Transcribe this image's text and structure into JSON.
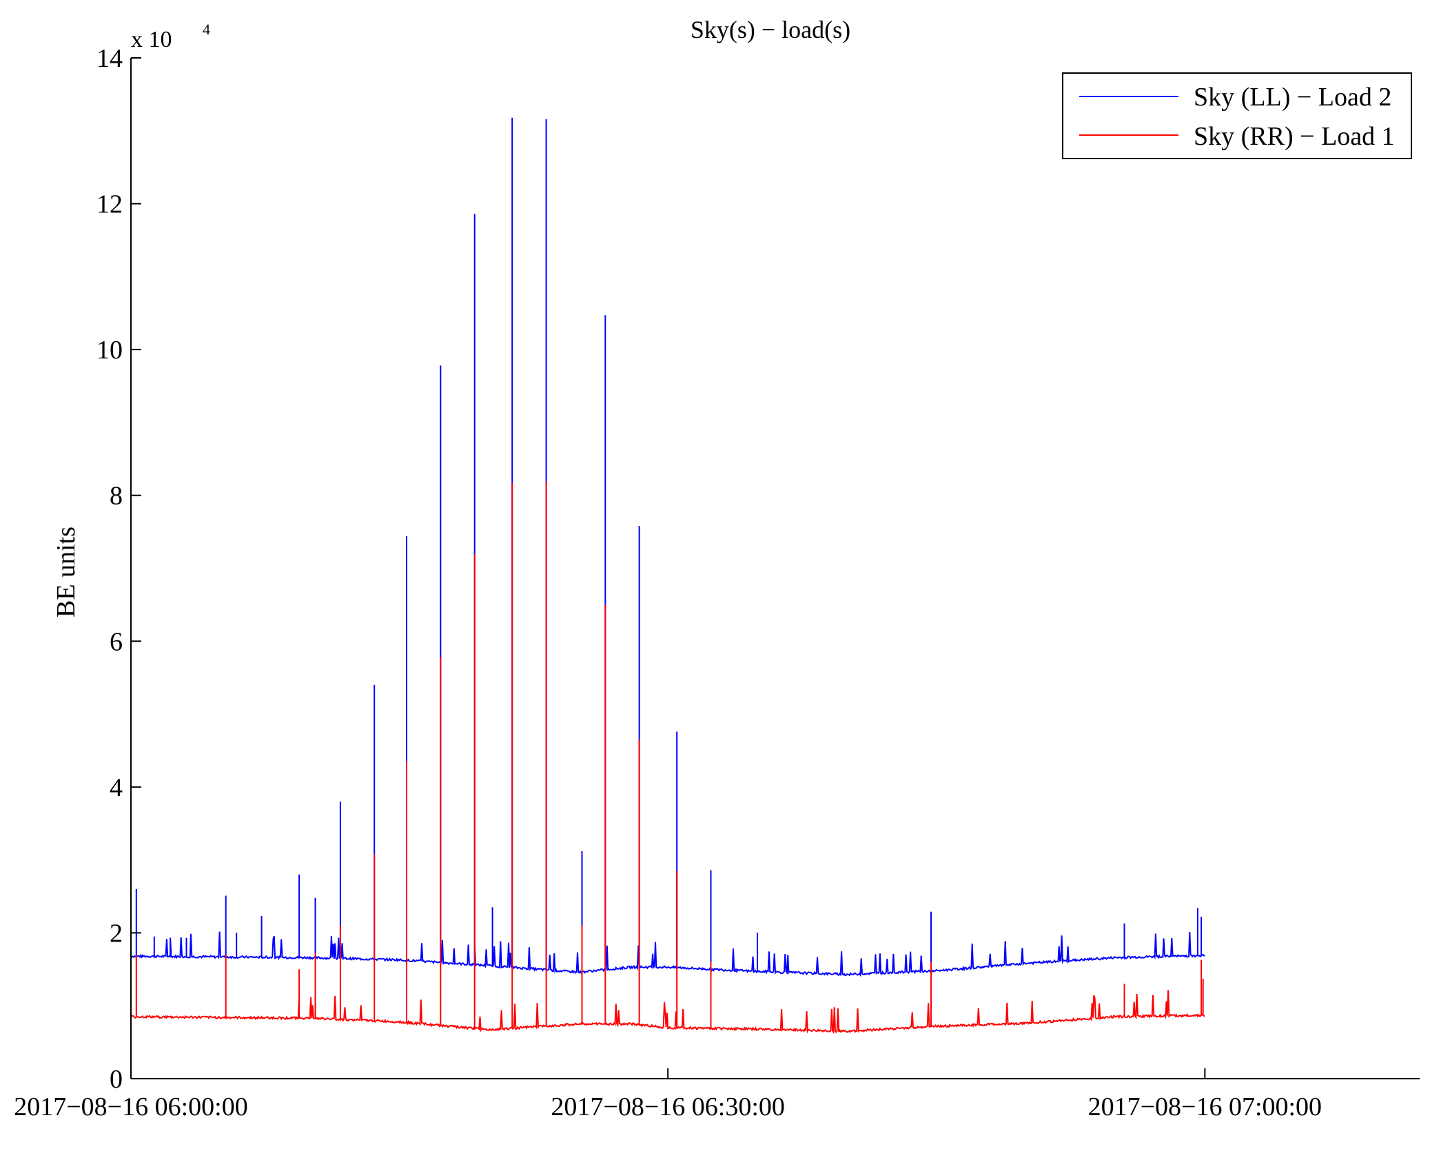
{
  "chart_data": {
    "type": "line",
    "title": "Sky(s) − load(s)",
    "ylabel": "BE units",
    "xlabel": "",
    "y_exponent_label": "x 10",
    "y_exponent_power": "4",
    "xlim": [
      "2017-08-16 06:00:00",
      "2017-08-16 07:12:00"
    ],
    "ylim": [
      0,
      140000
    ],
    "y_ticks": [
      0,
      20000,
      40000,
      60000,
      80000,
      100000,
      120000,
      140000
    ],
    "y_tick_labels": [
      "0",
      "2",
      "4",
      "6",
      "8",
      "10",
      "12",
      "14"
    ],
    "x_ticks": [
      "2017-08-16 06:00:00",
      "2017-08-16 06:30:00",
      "2017-08-16 07:00:00"
    ],
    "x_tick_labels": [
      "2017−08−16 06:00:00",
      "2017−08−16 06:30:00",
      "2017−08−16 07:00:00"
    ],
    "grid": false,
    "legend_position": "top-right",
    "series": [
      {
        "name": "Sky (LL) − Load 2",
        "color": "#0000ff",
        "baseline_x_minutes": [
          0,
          5,
          10,
          15,
          20,
          25,
          28,
          30,
          35,
          40,
          45,
          50,
          55,
          60
        ],
        "baseline_values": [
          16800,
          16700,
          16600,
          16300,
          15500,
          14600,
          15300,
          15300,
          14700,
          14300,
          14800,
          15800,
          16600,
          16900
        ],
        "spikes": [
          {
            "t": 0.3,
            "v": 26000
          },
          {
            "t": 1.3,
            "v": 19500
          },
          {
            "t": 2.2,
            "v": 19000
          },
          {
            "t": 3.1,
            "v": 19300
          },
          {
            "t": 5.3,
            "v": 25100
          },
          {
            "t": 5.9,
            "v": 20000
          },
          {
            "t": 7.3,
            "v": 22300
          },
          {
            "t": 9.4,
            "v": 28000
          },
          {
            "t": 10.3,
            "v": 24800
          },
          {
            "t": 11.7,
            "v": 38000
          },
          {
            "t": 13.6,
            "v": 54000
          },
          {
            "t": 15.4,
            "v": 74400
          },
          {
            "t": 17.3,
            "v": 97800
          },
          {
            "t": 19.2,
            "v": 118600
          },
          {
            "t": 20.2,
            "v": 23500
          },
          {
            "t": 21.3,
            "v": 131800
          },
          {
            "t": 23.2,
            "v": 131600
          },
          {
            "t": 25.2,
            "v": 31200
          },
          {
            "t": 26.5,
            "v": 104700
          },
          {
            "t": 28.4,
            "v": 75800
          },
          {
            "t": 30.5,
            "v": 47600
          },
          {
            "t": 32.4,
            "v": 28600
          },
          {
            "t": 35.0,
            "v": 20000
          },
          {
            "t": 44.7,
            "v": 22900
          },
          {
            "t": 55.5,
            "v": 21300
          },
          {
            "t": 59.6,
            "v": 23400
          },
          {
            "t": 59.8,
            "v": 22200
          }
        ]
      },
      {
        "name": "Sky (RR) − Load 1",
        "color": "#ff0000",
        "baseline_x_minutes": [
          0,
          5,
          10,
          15,
          20,
          25,
          28,
          30,
          35,
          40,
          45,
          50,
          55,
          60
        ],
        "baseline_values": [
          8500,
          8400,
          8300,
          7800,
          6700,
          7500,
          7500,
          7000,
          6800,
          6500,
          7200,
          7600,
          8500,
          8700
        ],
        "spikes": [
          {
            "t": 0.3,
            "v": 17000
          },
          {
            "t": 5.3,
            "v": 17000
          },
          {
            "t": 9.4,
            "v": 15000
          },
          {
            "t": 10.3,
            "v": 17200
          },
          {
            "t": 11.7,
            "v": 21000
          },
          {
            "t": 13.6,
            "v": 30800
          },
          {
            "t": 15.4,
            "v": 43500
          },
          {
            "t": 17.3,
            "v": 57800
          },
          {
            "t": 19.2,
            "v": 71900
          },
          {
            "t": 21.3,
            "v": 81700
          },
          {
            "t": 23.2,
            "v": 81900
          },
          {
            "t": 25.2,
            "v": 21000
          },
          {
            "t": 26.5,
            "v": 65000
          },
          {
            "t": 28.4,
            "v": 46500
          },
          {
            "t": 30.5,
            "v": 28500
          },
          {
            "t": 32.4,
            "v": 16000
          },
          {
            "t": 44.7,
            "v": 16000
          },
          {
            "t": 55.5,
            "v": 13000
          },
          {
            "t": 59.8,
            "v": 16300
          },
          {
            "t": 59.9,
            "v": 13700
          }
        ]
      }
    ]
  }
}
